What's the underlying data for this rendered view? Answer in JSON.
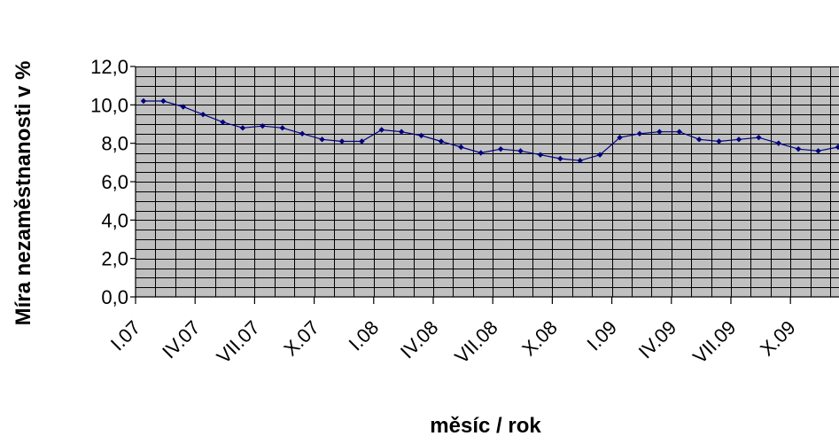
{
  "chart_data": {
    "type": "line",
    "title": "",
    "xlabel": "měsíc / rok",
    "ylabel": "Míra nezaměstnanosti v %",
    "ylim": [
      0,
      12
    ],
    "yticks": [
      "0,0",
      "2,0",
      "4,0",
      "6,0",
      "8,0",
      "10,0",
      "12,0"
    ],
    "x_tick_labels": [
      "I.07",
      "IV.07",
      "VII.07",
      "X.07",
      "I.08",
      "IV.08",
      "VII.08",
      "X.08",
      "I.09",
      "IV.09",
      "VII.09",
      "X.09"
    ],
    "grid": true,
    "colors": {
      "plot_background": "#c0c0c0",
      "grid": "#000000",
      "series": "#000080"
    },
    "series": [
      {
        "values": [
          10.2,
          10.2,
          9.9,
          9.5,
          9.1,
          8.8,
          8.9,
          8.8,
          8.5,
          8.2,
          8.1,
          8.1,
          8.7,
          8.6,
          8.4,
          8.1,
          7.8,
          7.5,
          7.7,
          7.6,
          7.4,
          7.2,
          7.1,
          7.4,
          8.3,
          8.5,
          8.6,
          8.6,
          8.2,
          8.1,
          8.2,
          8.3,
          8.0,
          7.7,
          7.6,
          7.8
        ]
      }
    ]
  }
}
